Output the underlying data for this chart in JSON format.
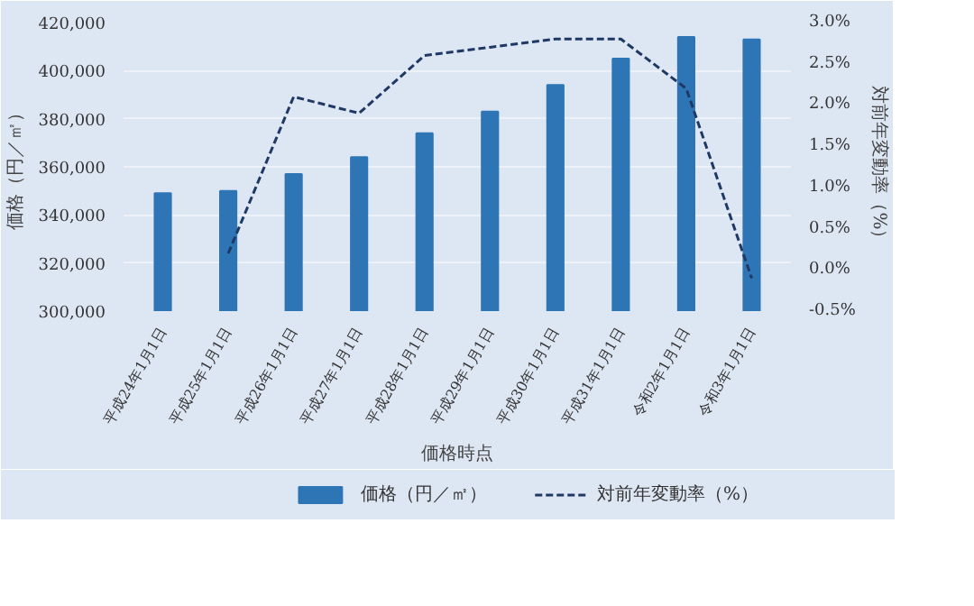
{
  "chart_data": {
    "type": "bar",
    "xlabel": "価格時点",
    "ylabel": "価格（円／㎡）",
    "y2label": "対前年変動率（%）",
    "categories": [
      "平成24年1月1日",
      "平成25年1月1日",
      "平成26年1月1日",
      "平成27年1月1日",
      "平成28年1月1日",
      "平成29年1月1日",
      "平成30年1月1日",
      "平成31年1月1日",
      "令和2年1月1日",
      "令和3年1月1日"
    ],
    "series": [
      {
        "name": "価格（円／㎡）",
        "type": "bar",
        "color": "#2e75b6",
        "values": [
          349000,
          350000,
          357000,
          364000,
          374000,
          383000,
          394000,
          405000,
          414000,
          413000
        ]
      },
      {
        "name": "対前年変動率（%）",
        "type": "line",
        "axis": "y2",
        "color": "#1f3864",
        "line_style": "dashed",
        "values": [
          null,
          0.2,
          2.1,
          1.9,
          2.6,
          2.7,
          2.8,
          2.8,
          2.2,
          -0.1
        ]
      }
    ],
    "ylim": [
      300000,
      420000
    ],
    "yticks": [
      {
        "value": 300000,
        "label": "300,000"
      },
      {
        "value": 320000,
        "label": "320,000"
      },
      {
        "value": 340000,
        "label": "340,000"
      },
      {
        "value": 360000,
        "label": "360,000"
      },
      {
        "value": 380000,
        "label": "380,000"
      },
      {
        "value": 400000,
        "label": "400,000"
      },
      {
        "value": 420000,
        "label": "420,000"
      }
    ],
    "y2lim": [
      -0.5,
      3.0
    ],
    "y2ticks": [
      {
        "value": -0.5,
        "label": "-0.5%"
      },
      {
        "value": 0,
        "label": "0.0%"
      },
      {
        "value": 0.5,
        "label": "0.5%"
      },
      {
        "value": 1.0,
        "label": "1.0%"
      },
      {
        "value": 1.5,
        "label": "1.5%"
      },
      {
        "value": 2.0,
        "label": "2.0%"
      },
      {
        "value": 2.5,
        "label": "2.5%"
      },
      {
        "value": 3.0,
        "label": "3.0%"
      }
    ],
    "grid": "y",
    "legend": "bottom"
  }
}
